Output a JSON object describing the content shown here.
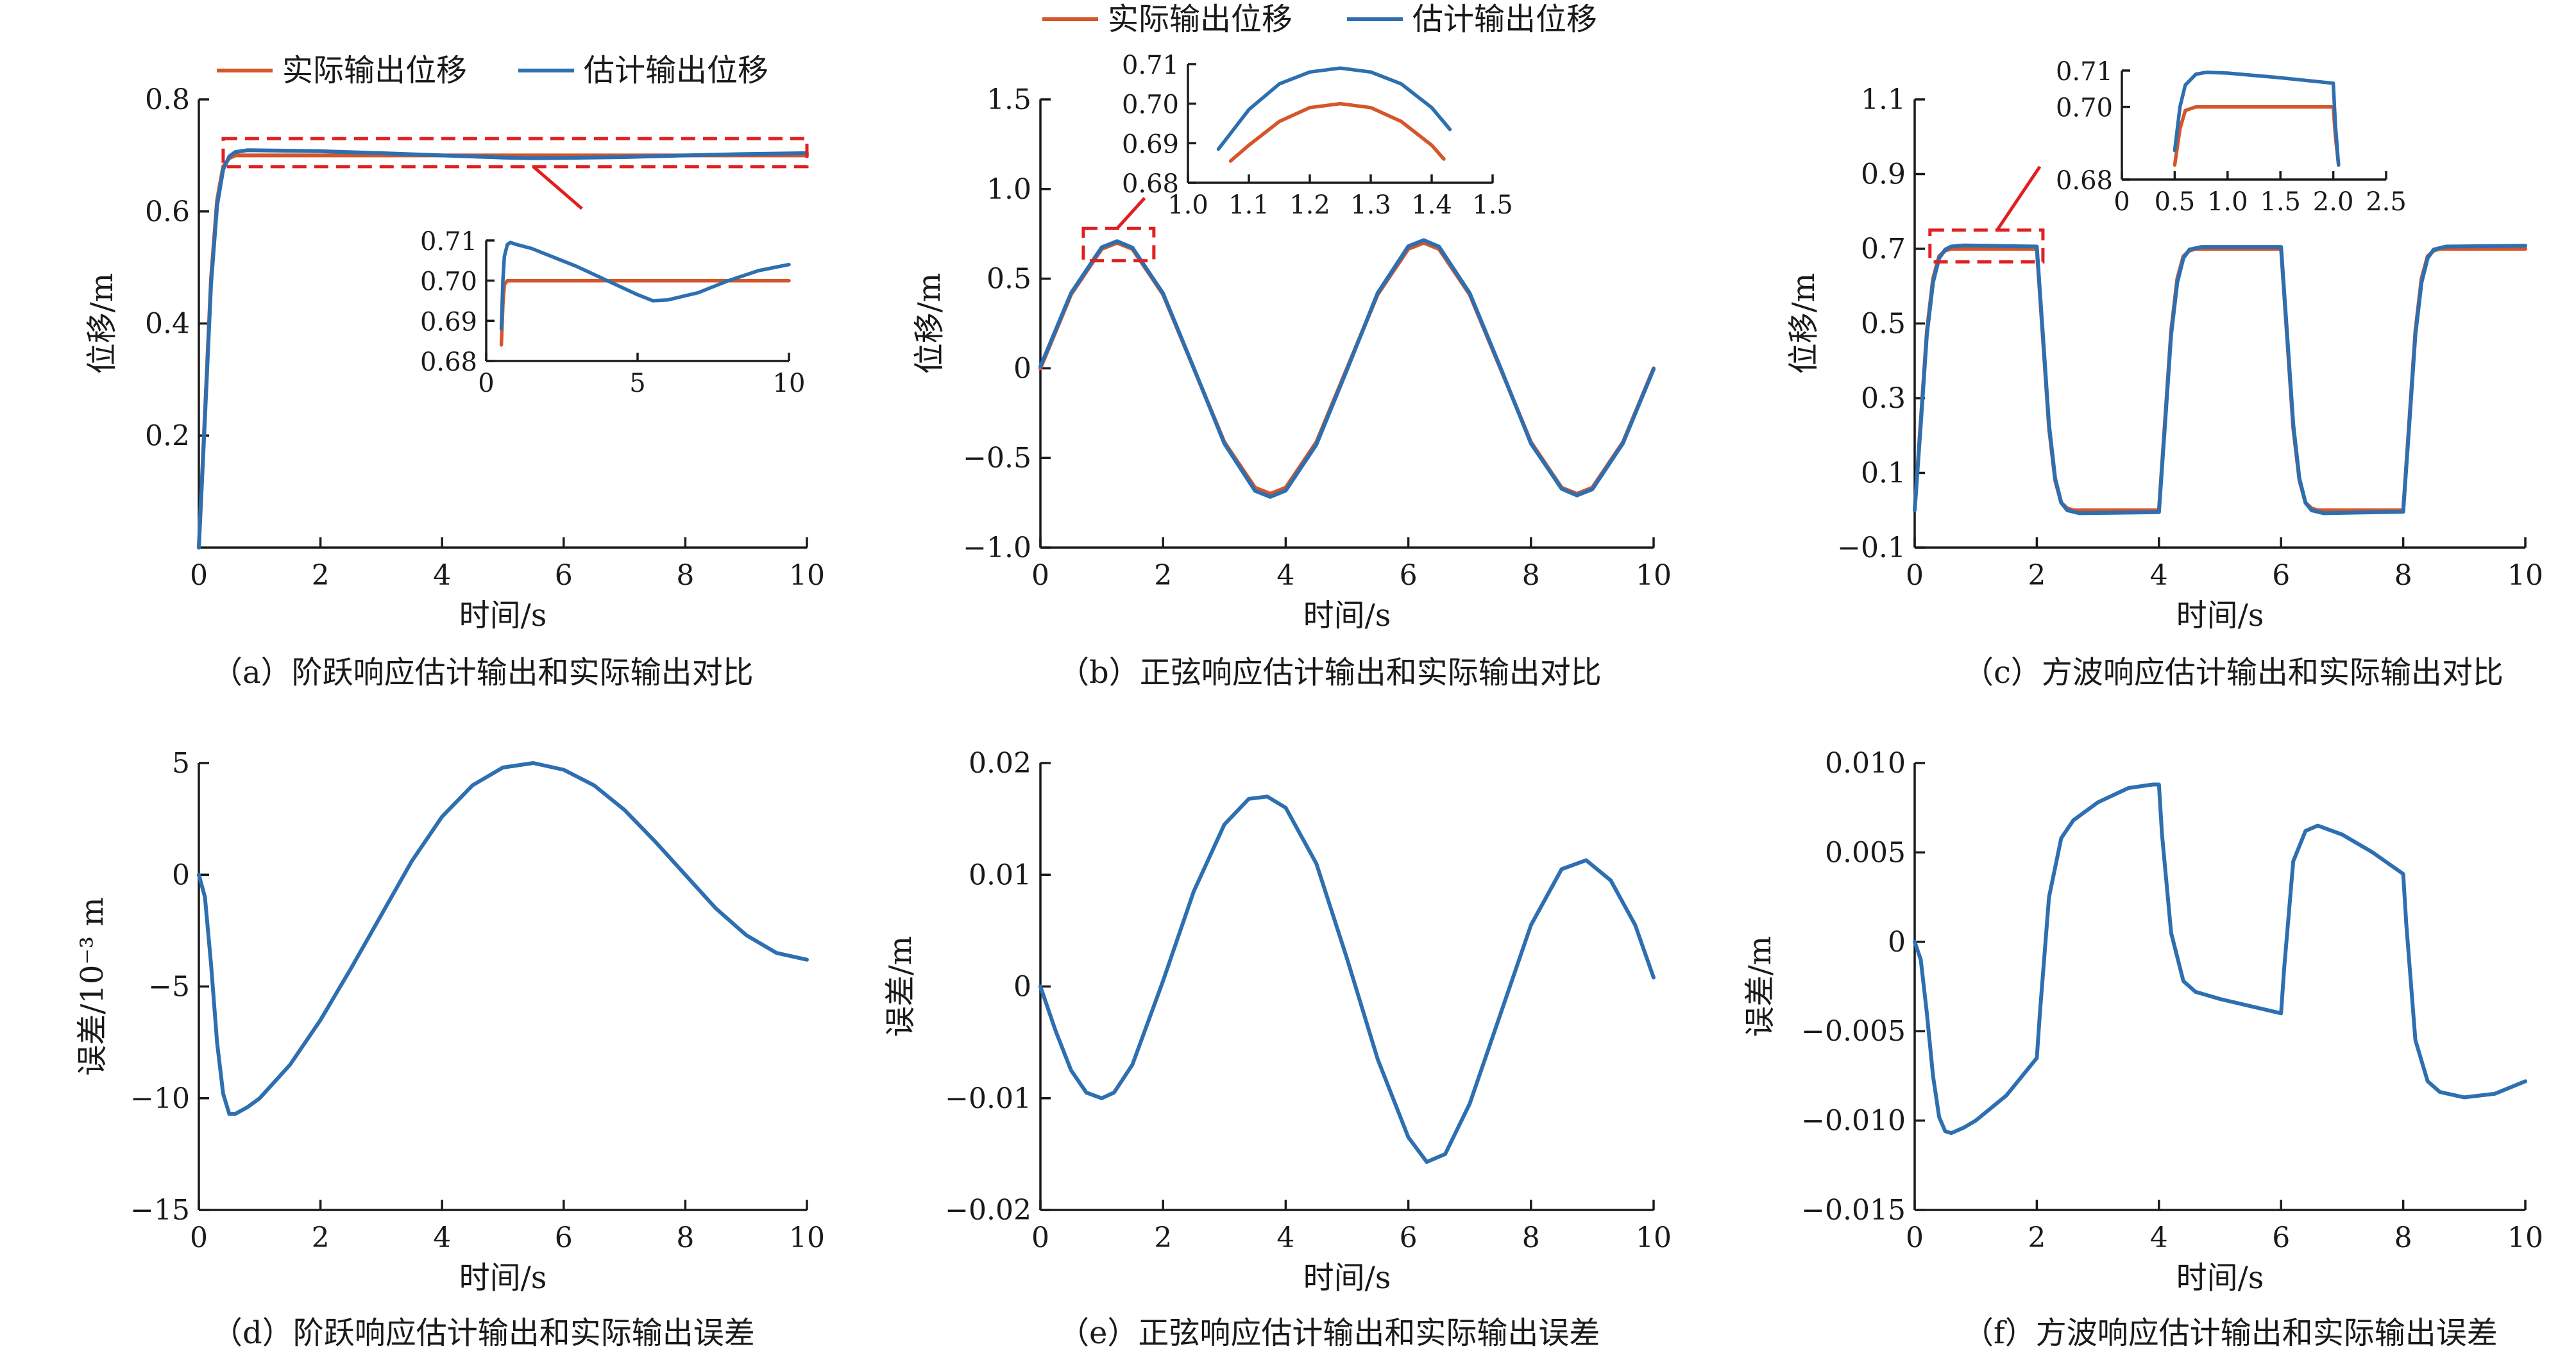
{
  "colors": {
    "actual": "#d4562a",
    "estimated": "#2d6fb0",
    "highlight": "#e02020",
    "axis": "#1a1a1a"
  },
  "legend": {
    "actual": "实际输出位移",
    "estimated": "估计输出位移"
  },
  "chart_data": [
    {
      "id": "a",
      "type": "line",
      "caption": "（a）阶跃响应估计输出和实际输出对比",
      "xlabel": "时间/s",
      "ylabel": "位移/m",
      "xlim": [
        0,
        10
      ],
      "ylim": [
        0,
        0.8
      ],
      "xticks": [
        "0",
        "2",
        "4",
        "6",
        "8",
        "10"
      ],
      "yticks": [
        "0.2",
        "0.4",
        "0.6",
        "0.8"
      ],
      "legend_position": "top",
      "series": [
        {
          "name": "实际输出位移",
          "color": "actual",
          "x": [
            0,
            0.1,
            0.2,
            0.3,
            0.4,
            0.5,
            0.6,
            0.8,
            1,
            2,
            4,
            6,
            8,
            10
          ],
          "y": [
            0,
            0.24,
            0.48,
            0.62,
            0.68,
            0.695,
            0.7,
            0.7,
            0.7,
            0.7,
            0.7,
            0.7,
            0.7,
            0.7
          ]
        },
        {
          "name": "估计输出位移",
          "color": "estimated",
          "x": [
            0,
            0.1,
            0.2,
            0.3,
            0.4,
            0.5,
            0.6,
            0.8,
            1,
            2,
            3,
            4,
            5,
            5.5,
            6,
            7,
            8,
            9,
            10
          ],
          "y": [
            0,
            0.23,
            0.47,
            0.61,
            0.675,
            0.698,
            0.706,
            0.7092,
            0.709,
            0.7075,
            0.704,
            0.7,
            0.6962,
            0.695,
            0.6955,
            0.697,
            0.7,
            0.7025,
            0.704
          ]
        }
      ],
      "inset": {
        "xlim": [
          0,
          10
        ],
        "ylim": [
          0.68,
          0.71
        ],
        "xticks": [
          "0",
          "5",
          "10"
        ],
        "yticks": [
          "0.68",
          "0.69",
          "0.70",
          "0.71"
        ],
        "series": [
          {
            "color": "actual",
            "x": [
              0.5,
              0.55,
              0.6,
              0.7,
              1,
              2,
              4,
              6,
              8,
              10
            ],
            "y": [
              0.684,
              0.694,
              0.699,
              0.7,
              0.7,
              0.7,
              0.7,
              0.7,
              0.7,
              0.7
            ]
          },
          {
            "color": "estimated",
            "x": [
              0.5,
              0.55,
              0.6,
              0.7,
              0.8,
              1,
              1.5,
              2,
              3,
              4,
              5,
              5.5,
              6,
              7,
              8,
              9,
              10
            ],
            "y": [
              0.688,
              0.7,
              0.706,
              0.709,
              0.7095,
              0.709,
              0.708,
              0.7065,
              0.7035,
              0.7,
              0.6965,
              0.695,
              0.6952,
              0.697,
              0.7,
              0.7025,
              0.704
            ]
          }
        ]
      }
    },
    {
      "id": "b",
      "type": "line",
      "caption": "（b）正弦响应估计输出和实际输出对比",
      "xlabel": "时间/s",
      "ylabel": "位移/m",
      "xlim": [
        0,
        10
      ],
      "ylim": [
        -1.0,
        1.5
      ],
      "xticks": [
        "0",
        "2",
        "4",
        "6",
        "8",
        "10"
      ],
      "yticks": [
        "−1.0",
        "−0.5",
        "0",
        "0.5",
        "1.0",
        "1.5"
      ],
      "legend_position": "above",
      "series": [
        {
          "name": "实际输出位移",
          "color": "actual",
          "x": [
            0,
            0.5,
            1,
            1.25,
            1.5,
            2,
            2.5,
            3,
            3.5,
            3.75,
            4,
            4.5,
            5,
            5.5,
            6,
            6.25,
            6.5,
            7,
            7.5,
            8,
            8.5,
            8.75,
            9,
            9.5,
            10
          ],
          "y": [
            0,
            0.412,
            0.666,
            0.7,
            0.666,
            0.412,
            0,
            -0.412,
            -0.666,
            -0.7,
            -0.666,
            -0.412,
            0,
            0.412,
            0.666,
            0.7,
            0.666,
            0.412,
            0,
            -0.412,
            -0.666,
            -0.7,
            -0.666,
            -0.412,
            0
          ]
        },
        {
          "name": "估计输出位移",
          "color": "estimated",
          "x": [
            0,
            0.5,
            1,
            1.25,
            1.5,
            2,
            2.5,
            3,
            3.5,
            3.75,
            4,
            4.5,
            5,
            5.5,
            6,
            6.25,
            6.5,
            7,
            7.5,
            8,
            8.5,
            8.75,
            9,
            9.5,
            10
          ],
          "y": [
            0.01,
            0.42,
            0.675,
            0.709,
            0.673,
            0.418,
            0.003,
            -0.42,
            -0.683,
            -0.717,
            -0.682,
            -0.426,
            -0.008,
            0.42,
            0.681,
            0.715,
            0.679,
            0.42,
            0.006,
            -0.42,
            -0.672,
            -0.709,
            -0.675,
            -0.418,
            -0.005
          ]
        }
      ],
      "inset": {
        "xlim": [
          1.0,
          1.5
        ],
        "ylim": [
          0.68,
          0.71
        ],
        "xticks": [
          "1.0",
          "1.1",
          "1.2",
          "1.3",
          "1.4",
          "1.5"
        ],
        "yticks": [
          "0.68",
          "0.69",
          "0.70",
          "0.71"
        ],
        "series": [
          {
            "color": "actual",
            "x": [
              1.07,
              1.1,
              1.15,
              1.2,
              1.25,
              1.3,
              1.35,
              1.4,
              1.42
            ],
            "y": [
              0.6855,
              0.6895,
              0.6955,
              0.699,
              0.7,
              0.699,
              0.6955,
              0.6895,
              0.686
            ]
          },
          {
            "color": "estimated",
            "x": [
              1.05,
              1.1,
              1.15,
              1.2,
              1.25,
              1.3,
              1.35,
              1.4,
              1.43
            ],
            "y": [
              0.6885,
              0.6985,
              0.705,
              0.708,
              0.709,
              0.708,
              0.705,
              0.699,
              0.6935
            ]
          }
        ]
      }
    },
    {
      "id": "c",
      "type": "line",
      "caption": "（c）方波响应估计输出和实际输出对比",
      "xlabel": "时间/s",
      "ylabel": "位移/m",
      "xlim": [
        0,
        10
      ],
      "ylim": [
        -0.1,
        1.1
      ],
      "xticks": [
        "0",
        "2",
        "4",
        "6",
        "8",
        "10"
      ],
      "yticks": [
        "−0.1",
        "0.1",
        "0.3",
        "0.5",
        "0.7",
        "0.9",
        "1.1"
      ],
      "series": [
        {
          "name": "实际输出位移",
          "color": "actual",
          "x": [
            0,
            0.1,
            0.2,
            0.3,
            0.4,
            0.5,
            0.6,
            2.0,
            2.1,
            2.2,
            2.3,
            2.4,
            2.5,
            2.6,
            4.0,
            4.1,
            4.2,
            4.3,
            4.4,
            4.5,
            4.6,
            6.0,
            6.1,
            6.2,
            6.3,
            6.4,
            6.5,
            6.6,
            8.0,
            8.1,
            8.2,
            8.3,
            8.4,
            8.5,
            8.6,
            10
          ],
          "y": [
            0,
            0.24,
            0.48,
            0.62,
            0.68,
            0.695,
            0.7,
            0.7,
            0.46,
            0.22,
            0.08,
            0.02,
            0.005,
            0,
            0,
            0.24,
            0.48,
            0.62,
            0.68,
            0.695,
            0.7,
            0.7,
            0.46,
            0.22,
            0.08,
            0.02,
            0.005,
            0,
            0,
            0.24,
            0.48,
            0.62,
            0.68,
            0.695,
            0.7,
            0.7
          ]
        },
        {
          "name": "估计输出位移",
          "color": "estimated",
          "x": [
            0,
            0.1,
            0.2,
            0.3,
            0.4,
            0.5,
            0.6,
            0.8,
            2.0,
            2.1,
            2.2,
            2.3,
            2.4,
            2.5,
            2.7,
            4.0,
            4.1,
            4.2,
            4.3,
            4.4,
            4.5,
            4.7,
            6.0,
            6.1,
            6.2,
            6.3,
            6.4,
            6.5,
            6.7,
            8.0,
            8.1,
            8.2,
            8.3,
            8.4,
            8.5,
            8.7,
            10
          ],
          "y": [
            0,
            0.23,
            0.47,
            0.61,
            0.675,
            0.698,
            0.706,
            0.709,
            0.706,
            0.47,
            0.23,
            0.085,
            0.02,
            0.0,
            -0.008,
            -0.005,
            0.23,
            0.47,
            0.61,
            0.675,
            0.698,
            0.705,
            0.705,
            0.47,
            0.23,
            0.085,
            0.02,
            0.0,
            -0.008,
            -0.004,
            0.23,
            0.47,
            0.61,
            0.675,
            0.698,
            0.706,
            0.708
          ]
        }
      ],
      "inset": {
        "xlim": [
          0,
          2.5
        ],
        "ylim": [
          0.68,
          0.71
        ],
        "xticks": [
          "0",
          "0.5",
          "1.0",
          "1.5",
          "2.0",
          "2.5"
        ],
        "yticks": [
          "0.68",
          "0.70",
          "0.71"
        ],
        "series": [
          {
            "color": "actual",
            "x": [
              0.5,
              0.55,
              0.6,
              0.7,
              1.0,
              1.5,
              2.0,
              2.02,
              2.05
            ],
            "y": [
              0.684,
              0.694,
              0.699,
              0.7,
              0.7,
              0.7,
              0.7,
              0.692,
              0.684
            ]
          },
          {
            "color": "estimated",
            "x": [
              0.5,
              0.55,
              0.6,
              0.7,
              0.8,
              1.0,
              1.5,
              2.0,
              2.02,
              2.05
            ],
            "y": [
              0.688,
              0.7,
              0.706,
              0.709,
              0.7095,
              0.7093,
              0.708,
              0.7065,
              0.695,
              0.684
            ]
          }
        ]
      }
    },
    {
      "id": "d",
      "type": "line",
      "caption": "（d）阶跃响应估计输出和实际输出误差",
      "xlabel": "时间/s",
      "ylabel": "误差/10⁻³ m",
      "xlim": [
        0,
        10
      ],
      "ylim": [
        -15,
        5
      ],
      "xticks": [
        "0",
        "2",
        "4",
        "6",
        "8",
        "10"
      ],
      "yticks": [
        "−15",
        "−10",
        "−5",
        "0",
        "5"
      ],
      "series": [
        {
          "name": "误差",
          "color": "estimated",
          "x": [
            0,
            0.1,
            0.2,
            0.3,
            0.4,
            0.5,
            0.6,
            0.8,
            1.0,
            1.5,
            2,
            2.5,
            3,
            3.5,
            4,
            4.5,
            5,
            5.5,
            6,
            6.5,
            7,
            7.5,
            8,
            8.5,
            9,
            9.5,
            10
          ],
          "y": [
            0,
            -1,
            -4,
            -7.5,
            -9.8,
            -10.7,
            -10.7,
            -10.4,
            -10,
            -8.5,
            -6.5,
            -4.2,
            -1.8,
            0.6,
            2.6,
            4.0,
            4.8,
            5.0,
            4.7,
            4.0,
            2.9,
            1.5,
            0,
            -1.5,
            -2.7,
            -3.5,
            -3.8
          ]
        }
      ]
    },
    {
      "id": "e",
      "type": "line",
      "caption": "（e）正弦响应估计输出和实际输出误差",
      "xlabel": "时间/s",
      "ylabel": "误差/m",
      "xlim": [
        0,
        10
      ],
      "ylim": [
        -0.02,
        0.02
      ],
      "xticks": [
        "0",
        "2",
        "4",
        "6",
        "8",
        "10"
      ],
      "yticks": [
        "−0.02",
        "−0.01",
        "0",
        "0.01",
        "0.02"
      ],
      "series": [
        {
          "name": "误差",
          "color": "estimated",
          "x": [
            0,
            0.25,
            0.5,
            0.75,
            1.0,
            1.2,
            1.5,
            2.0,
            2.5,
            3.0,
            3.4,
            3.7,
            4.0,
            4.5,
            5.0,
            5.5,
            6.0,
            6.3,
            6.6,
            7.0,
            7.5,
            8.0,
            8.5,
            8.9,
            9.3,
            9.7,
            10
          ],
          "y": [
            0,
            -0.004,
            -0.0075,
            -0.0095,
            -0.01,
            -0.0095,
            -0.007,
            0.0005,
            0.0085,
            0.0145,
            0.0168,
            0.017,
            0.016,
            0.011,
            0.0025,
            -0.0065,
            -0.0135,
            -0.0157,
            -0.015,
            -0.0105,
            -0.0025,
            0.0055,
            0.0105,
            0.0113,
            0.0095,
            0.0055,
            0.0008
          ]
        }
      ]
    },
    {
      "id": "f",
      "type": "line",
      "caption": "（f）方波响应估计输出和实际输出误差",
      "xlabel": "时间/s",
      "ylabel": "误差/m",
      "xlim": [
        0,
        10
      ],
      "ylim": [
        -0.015,
        0.01
      ],
      "xticks": [
        "0",
        "2",
        "4",
        "6",
        "8",
        "10"
      ],
      "yticks": [
        "−0.015",
        "−0.010",
        "−0.005",
        "0",
        "0.005",
        "0.010"
      ],
      "series": [
        {
          "name": "误差",
          "color": "estimated",
          "x": [
            0,
            0.1,
            0.2,
            0.3,
            0.4,
            0.5,
            0.6,
            0.8,
            1.0,
            1.5,
            2.0,
            2.05,
            2.2,
            2.4,
            2.6,
            3.0,
            3.5,
            3.9,
            4.0,
            4.05,
            4.2,
            4.4,
            4.6,
            5.0,
            5.5,
            6.0,
            6.05,
            6.2,
            6.4,
            6.6,
            7.0,
            7.5,
            8.0,
            8.05,
            8.2,
            8.4,
            8.6,
            9.0,
            9.5,
            10
          ],
          "y": [
            0,
            -0.001,
            -0.004,
            -0.0075,
            -0.0098,
            -0.0106,
            -0.0107,
            -0.0104,
            -0.01,
            -0.0086,
            -0.0065,
            -0.004,
            0.0025,
            0.0058,
            0.0068,
            0.0078,
            0.0086,
            0.0088,
            0.0088,
            0.006,
            0.0005,
            -0.0022,
            -0.0028,
            -0.0032,
            -0.0036,
            -0.004,
            -0.0015,
            0.0045,
            0.0062,
            0.0065,
            0.006,
            0.005,
            0.0038,
            0.001,
            -0.0055,
            -0.0078,
            -0.0084,
            -0.0087,
            -0.0085,
            -0.0078
          ]
        }
      ]
    }
  ]
}
